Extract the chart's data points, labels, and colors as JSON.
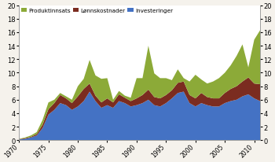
{
  "years": [
    1970,
    1971,
    1972,
    1973,
    1974,
    1975,
    1976,
    1977,
    1978,
    1979,
    1980,
    1981,
    1982,
    1983,
    1984,
    1985,
    1986,
    1987,
    1988,
    1989,
    1990,
    1991,
    1992,
    1993,
    1994,
    1995,
    1996,
    1997,
    1998,
    1999,
    2000,
    2001,
    2002,
    2003,
    2004,
    2005,
    2006,
    2007,
    2008,
    2009,
    2010,
    2011
  ],
  "investeringer": [
    0.1,
    0.2,
    0.4,
    0.7,
    1.8,
    3.8,
    4.5,
    5.5,
    5.2,
    4.5,
    5.0,
    5.8,
    7.2,
    5.8,
    4.8,
    5.2,
    4.8,
    5.8,
    5.5,
    5.0,
    5.2,
    5.5,
    6.0,
    5.2,
    5.0,
    5.5,
    6.2,
    7.0,
    7.2,
    5.5,
    5.0,
    5.5,
    5.2,
    5.0,
    5.0,
    5.5,
    5.8,
    6.0,
    6.5,
    6.8,
    6.2,
    5.8
  ],
  "lonnskostnader": [
    0.05,
    0.1,
    0.1,
    0.2,
    0.5,
    0.8,
    1.0,
    1.2,
    1.0,
    1.0,
    1.5,
    1.8,
    1.2,
    0.8,
    0.8,
    1.0,
    0.8,
    1.0,
    0.8,
    0.8,
    1.0,
    1.2,
    1.5,
    1.2,
    1.2,
    1.2,
    1.2,
    1.5,
    1.5,
    1.2,
    1.2,
    1.5,
    1.2,
    1.2,
    1.2,
    1.5,
    1.8,
    2.0,
    2.2,
    2.5,
    2.2,
    2.5
  ],
  "produktinnsats": [
    0.05,
    0.1,
    0.2,
    0.3,
    0.7,
    1.0,
    0.5,
    0.3,
    0.3,
    0.5,
    1.5,
    1.5,
    3.5,
    3.0,
    3.5,
    3.0,
    0.4,
    0.5,
    0.3,
    0.5,
    3.0,
    2.5,
    6.5,
    3.5,
    3.0,
    2.5,
    1.5,
    2.0,
    0.5,
    2.0,
    3.5,
    2.0,
    2.0,
    2.5,
    3.0,
    3.0,
    3.5,
    4.5,
    5.5,
    1.5,
    6.5,
    8.0
  ],
  "color_inv": "#4472c4",
  "color_lon": "#7b2c20",
  "color_pro": "#8caa38",
  "ylim": [
    0,
    20
  ],
  "yticks": [
    0,
    2,
    4,
    6,
    8,
    10,
    12,
    14,
    16,
    18,
    20
  ],
  "xticks": [
    1970,
    1975,
    1980,
    1985,
    1990,
    1995,
    2000,
    2005,
    2010
  ],
  "legend_labels": [
    "Produktinnsats",
    "Lønnskostnader",
    "Investeringer"
  ],
  "bg_color": "#f5f2ec",
  "plot_bg": "#ffffff"
}
